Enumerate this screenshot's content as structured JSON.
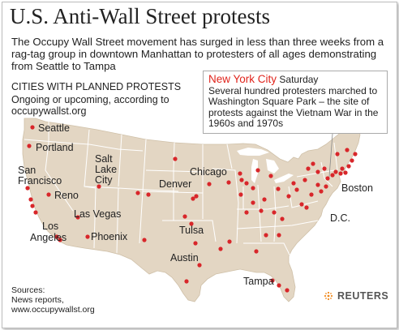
{
  "title": "U.S. Anti-Wall Street protests",
  "subtitle": "The Occupy Wall Street movement has surged in less than three weeks from a rag-tag group in downtown Manhattan to protesters of all ages demonstrating from Seattle to Tampa",
  "legend": {
    "heading": "CITIES WITH PLANNED PROTESTS",
    "body": "Ongoing or upcoming, according to occupywallst.org"
  },
  "callout": {
    "city": "New York City",
    "day": "Saturday",
    "text": "Several hundred protesters marched to Washington Square Park – the site of protests against the Vietnam War in the 1960s and 1970s"
  },
  "city_labels": {
    "seattle": "Seattle",
    "portland": "Portland",
    "san_francisco_1": "San",
    "san_francisco_2": "Francisco",
    "reno": "Reno",
    "salt_lake_1": "Salt",
    "salt_lake_2": "Lake",
    "salt_lake_3": "City",
    "las_vegas": "Las Vegas",
    "los_angeles_1": "Los",
    "los_angeles_2": "Angeles",
    "phoenix": "Phoenix",
    "denver": "Denver",
    "chicago": "Chicago",
    "tulsa": "Tulsa",
    "austin": "Austin",
    "tampa": "Tampa",
    "boston": "Boston",
    "dc": "D.C."
  },
  "sources": {
    "label": "Sources:",
    "line1": "News reports,",
    "line2": "www.occupywallst.org"
  },
  "credit": "REUTERS",
  "colors": {
    "land": "#e3d6c3",
    "state_border": "#ffffff",
    "water": "#ffffff",
    "dot": "#d8262a",
    "callout_city": "#e0241c"
  }
}
